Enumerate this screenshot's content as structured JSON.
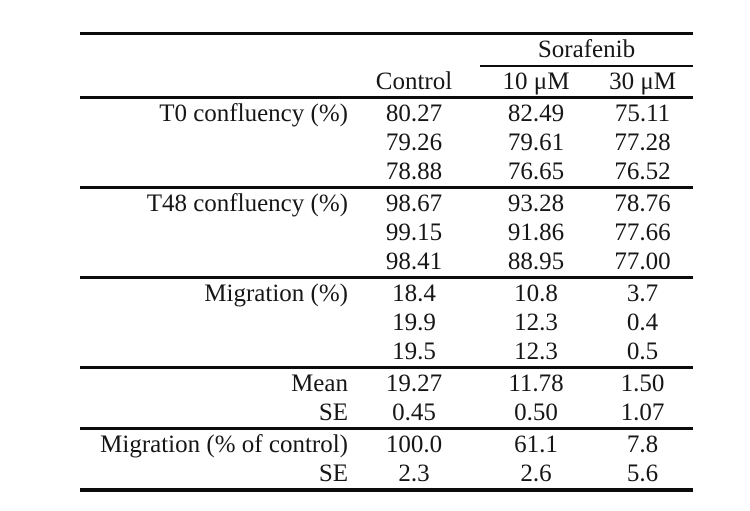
{
  "colors": {
    "background": "#ffffff",
    "text": "#161616",
    "rule": "#0c0c0c"
  },
  "table": {
    "spanner_label": "Sorafenib",
    "column_headers": [
      "Control",
      "10 μM",
      "30 μM"
    ],
    "sections": [
      {
        "rows": [
          {
            "label": "T0 confluency (%)",
            "values": [
              "80.27",
              "82.49",
              "75.11"
            ]
          },
          {
            "label": "",
            "values": [
              "79.26",
              "79.61",
              "77.28"
            ]
          },
          {
            "label": "",
            "values": [
              "78.88",
              "76.65",
              "76.52"
            ]
          }
        ]
      },
      {
        "rows": [
          {
            "label": "T48 confluency (%)",
            "values": [
              "98.67",
              "93.28",
              "78.76"
            ]
          },
          {
            "label": "",
            "values": [
              "99.15",
              "91.86",
              "77.66"
            ]
          },
          {
            "label": "",
            "values": [
              "98.41",
              "88.95",
              "77.00"
            ]
          }
        ]
      },
      {
        "rows": [
          {
            "label": "Migration (%)",
            "values": [
              "18.4",
              "10.8",
              "3.7"
            ]
          },
          {
            "label": "",
            "values": [
              "19.9",
              "12.3",
              "0.4"
            ]
          },
          {
            "label": "",
            "values": [
              "19.5",
              "12.3",
              "0.5"
            ]
          }
        ]
      },
      {
        "rows": [
          {
            "label": "Mean",
            "values": [
              "19.27",
              "11.78",
              "1.50"
            ]
          },
          {
            "label": "SE",
            "values": [
              "0.45",
              "0.50",
              "1.07"
            ]
          }
        ]
      },
      {
        "rows": [
          {
            "label": "Migration (% of control)",
            "values": [
              "100.0",
              "61.1",
              "7.8"
            ]
          },
          {
            "label": "SE",
            "values": [
              "2.3",
              "2.6",
              "5.6"
            ]
          }
        ]
      }
    ]
  },
  "chart_data": {
    "type": "table",
    "column_group": {
      "label": "Sorafenib",
      "columns": [
        "10 μM",
        "30 μM"
      ]
    },
    "columns": [
      "Control",
      "10 μM",
      "30 μM"
    ],
    "rows": [
      [
        "T0 confluency (%)",
        80.27,
        82.49,
        75.11
      ],
      [
        "",
        79.26,
        79.61,
        77.28
      ],
      [
        "",
        78.88,
        76.65,
        76.52
      ],
      [
        "T48 confluency (%)",
        98.67,
        93.28,
        78.76
      ],
      [
        "",
        99.15,
        91.86,
        77.66
      ],
      [
        "",
        98.41,
        88.95,
        77.0
      ],
      [
        "Migration (%)",
        18.4,
        10.8,
        3.7
      ],
      [
        "",
        19.9,
        12.3,
        0.4
      ],
      [
        "",
        19.5,
        12.3,
        0.5
      ],
      [
        "Mean",
        19.27,
        11.78,
        1.5
      ],
      [
        "SE",
        0.45,
        0.5,
        1.07
      ],
      [
        "Migration (% of control)",
        100.0,
        61.1,
        7.8
      ],
      [
        "SE",
        2.3,
        2.6,
        5.6
      ]
    ]
  }
}
